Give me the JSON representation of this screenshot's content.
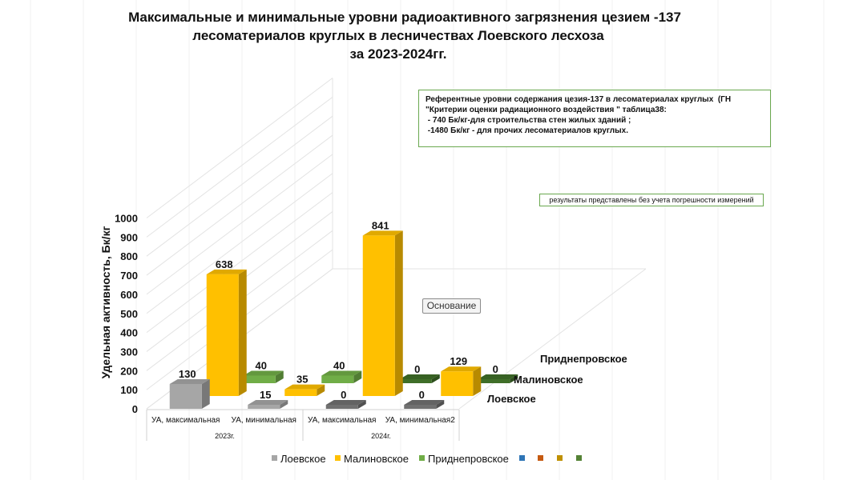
{
  "title": {
    "lines": [
      "Максимальные и минимальные уровни радиоактивного загрязнения цезием -137",
      "лесоматериалов круглых в лесничествах Лоевского лесхоза",
      "за 2023-2024гг."
    ]
  },
  "reference_note": {
    "lines": [
      "Референтные уровни содержания цезия-137 в лесоматериалах круглых  (ГН",
      "\"Критерии оценки радиационного воздействия \" таблица38:",
      " - 740 Бк/кг-для строительства стен жилых зданий ;",
      " -1480 Бк/кг - для прочих лесоматериалов круглых."
    ]
  },
  "measurement_note": "результаты представлены без учета погрешности измерений",
  "axis_button": "Основание",
  "chart_data": {
    "type": "bar",
    "subtype": "3d-column",
    "ylabel": "Удельная активность, Бк/кг",
    "ylim": [
      0,
      1000
    ],
    "yticks": [
      "0",
      "100",
      "200",
      "300",
      "400",
      "500",
      "600",
      "700",
      "800",
      "900",
      "1000"
    ],
    "categories": [
      "УА, максимальная",
      "УА, минимальная",
      "УА, максимальная",
      "УА, минимальная2"
    ],
    "category_groups": [
      {
        "label": "2023г.",
        "span": 2
      },
      {
        "label": "2024г.",
        "span": 2
      }
    ],
    "series": [
      {
        "name": "Лоевское",
        "color": "#a6a6a6",
        "values": [
          130,
          15,
          0,
          0
        ]
      },
      {
        "name": "Малиновское",
        "color": "#ffc000",
        "values": [
          638,
          35,
          841,
          129
        ]
      },
      {
        "name": "Приднепровское",
        "color": "#70ad47",
        "values": [
          40,
          40,
          0,
          0
        ]
      }
    ],
    "depth_labels": [
      "Лоевское",
      "Малиновское",
      "Приднепровское"
    ],
    "legend_position": "bottom",
    "legend_extra_colors": [
      "#2e75b6",
      "#c55a11",
      "#bf9000",
      "#548235"
    ],
    "grid": true
  }
}
